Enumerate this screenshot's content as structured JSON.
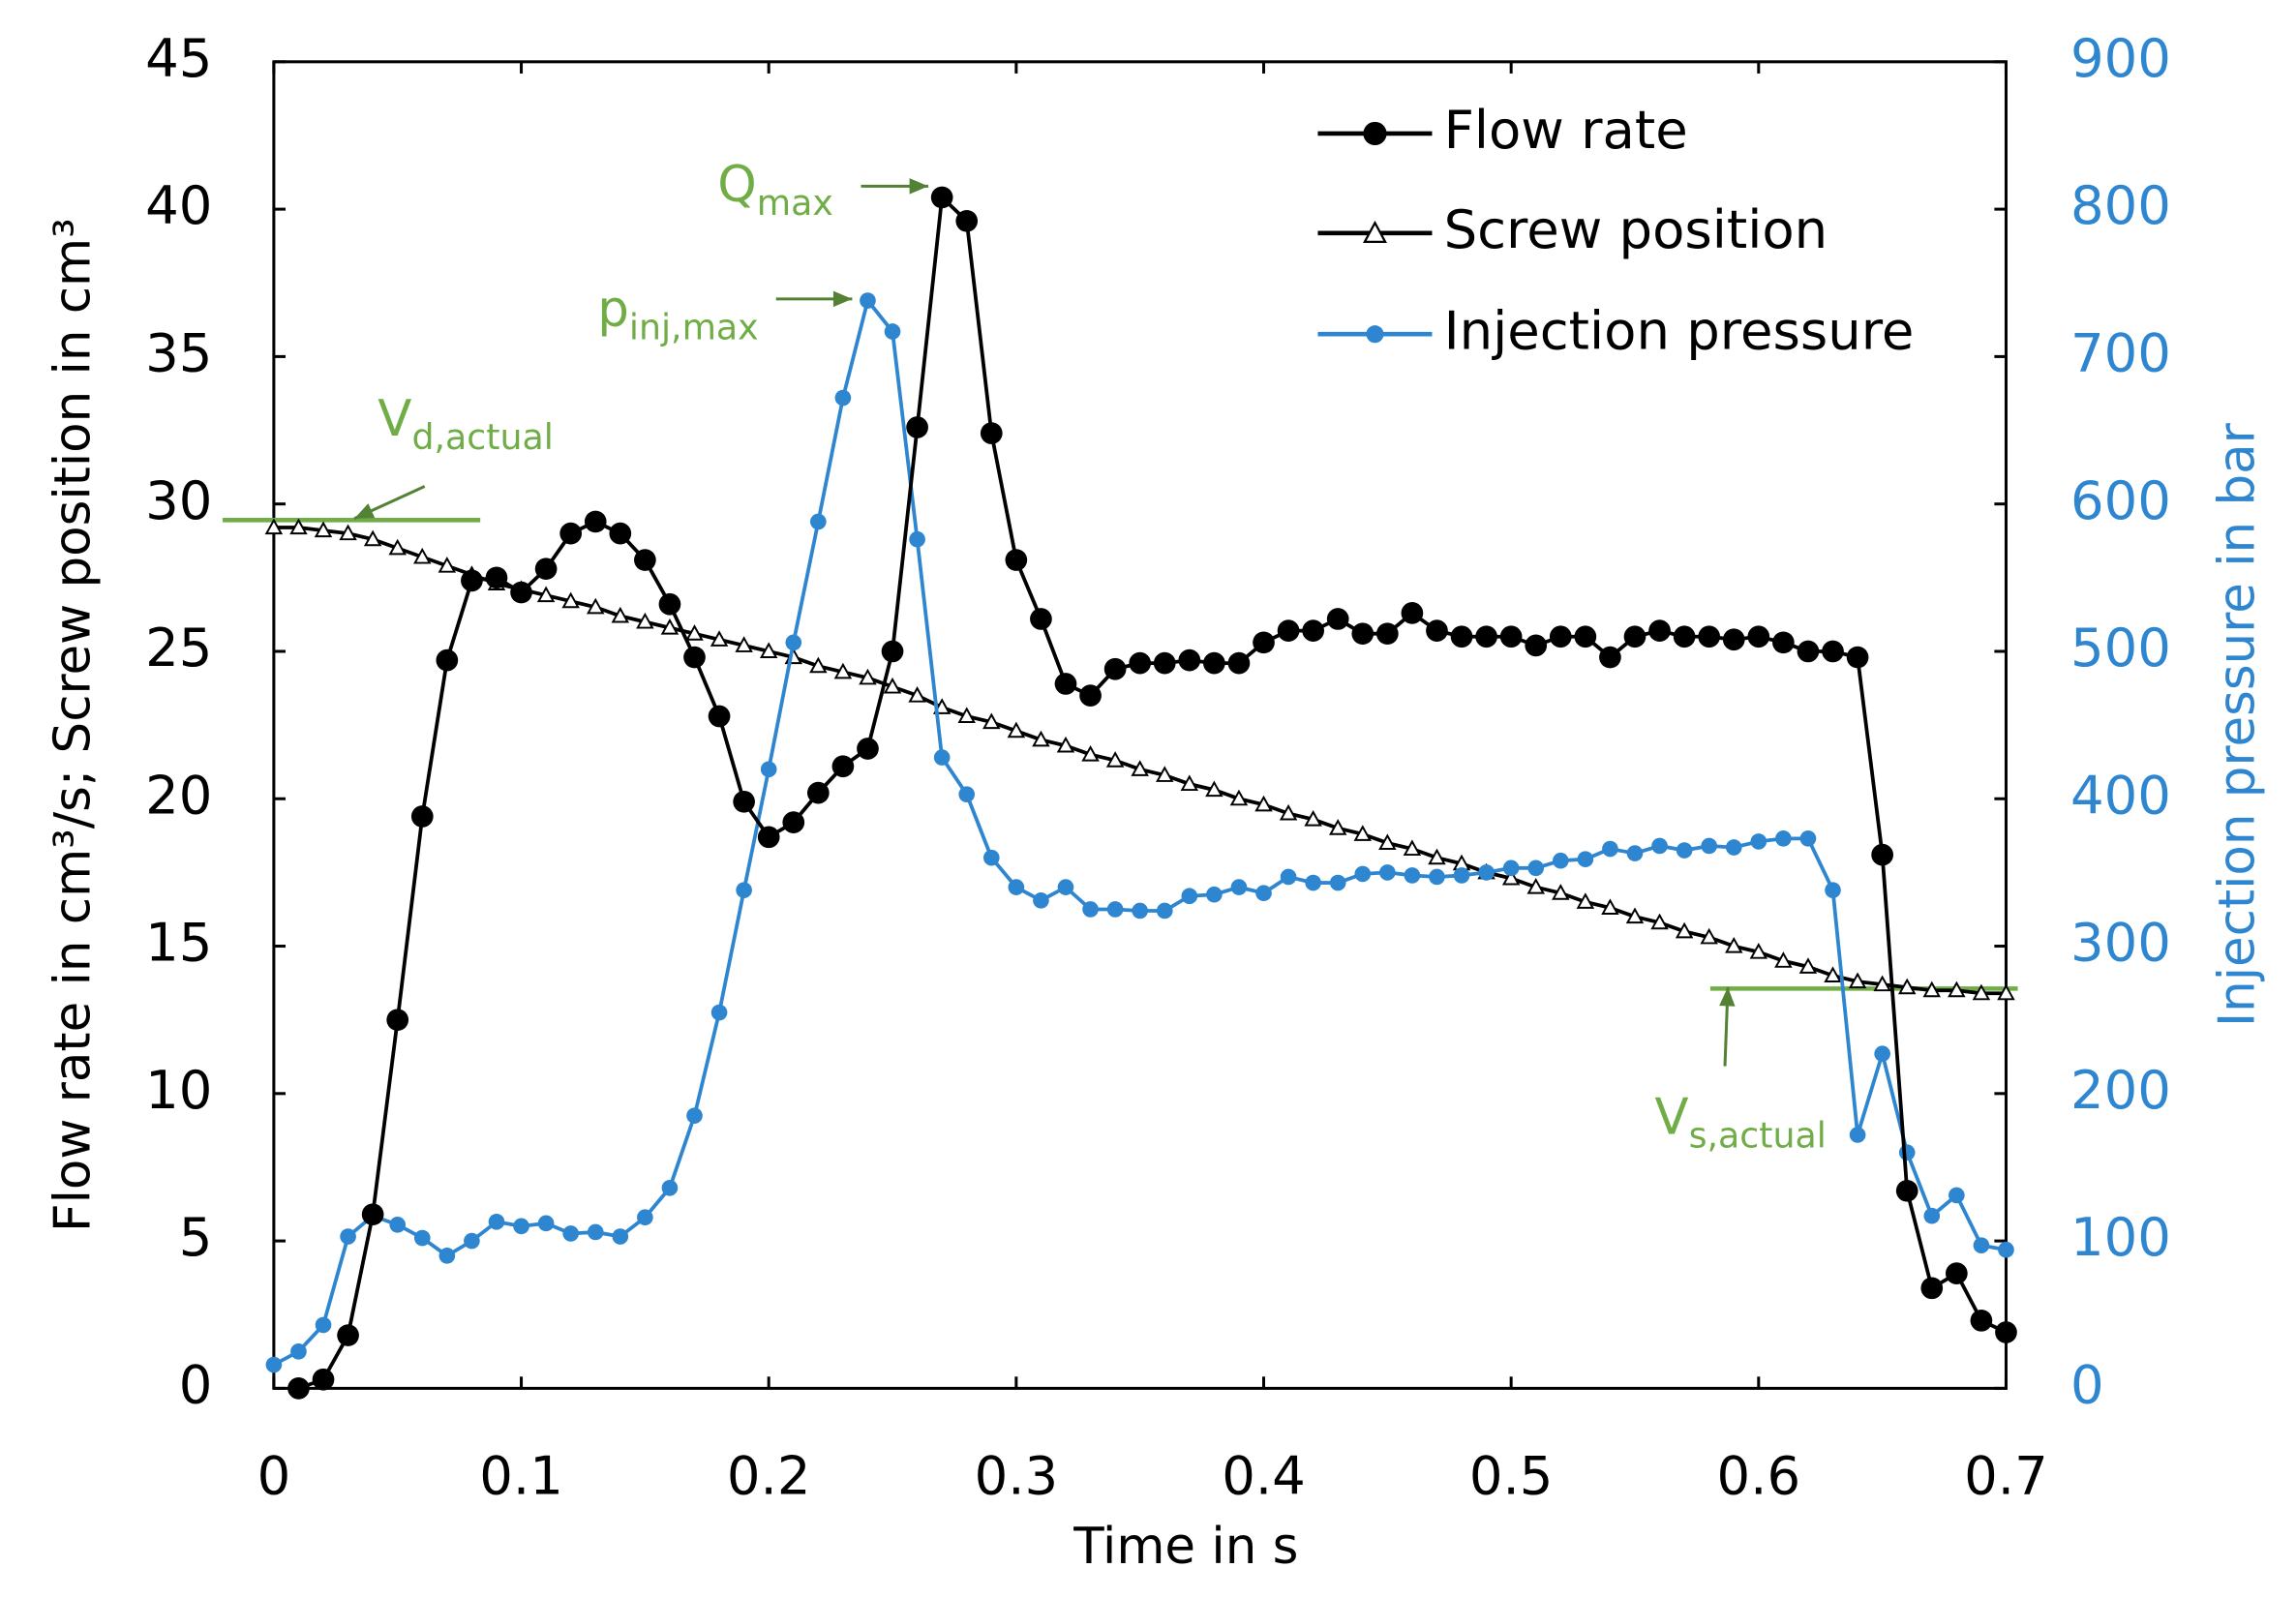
{
  "chart_data": {
    "type": "line",
    "xlabel": "Time in s",
    "ylabel": "Flow rate in cm³/s; Screw position in cm³",
    "y2label": "Injection pressure in bar",
    "xlim": [
      0,
      0.7
    ],
    "xticks": [
      0,
      0.1,
      0.2,
      0.3,
      0.4,
      0.5,
      0.6,
      0.7
    ],
    "ylim": [
      0,
      45
    ],
    "yticks": [
      0,
      5,
      10,
      15,
      20,
      25,
      30,
      35,
      40,
      45
    ],
    "y2lim": [
      0,
      900
    ],
    "y2ticks": [
      0,
      100,
      200,
      300,
      400,
      500,
      600,
      700,
      800,
      900
    ],
    "legend": "upper right",
    "series": [
      {
        "name": "Flow rate",
        "color": "#000000",
        "marker": "circle",
        "axis": "y",
        "x": [
          0.01,
          0.02,
          0.03,
          0.04,
          0.05,
          0.06,
          0.07,
          0.08,
          0.09,
          0.1,
          0.11,
          0.12,
          0.13,
          0.14,
          0.15,
          0.16,
          0.17,
          0.18,
          0.19,
          0.2,
          0.21,
          0.22,
          0.23,
          0.24,
          0.25,
          0.26,
          0.27,
          0.28,
          0.29,
          0.3,
          0.31,
          0.32,
          0.33,
          0.34,
          0.35,
          0.36,
          0.37,
          0.38,
          0.39,
          0.4,
          0.41,
          0.42,
          0.43,
          0.44,
          0.45,
          0.46,
          0.47,
          0.48,
          0.49,
          0.5,
          0.51,
          0.52,
          0.53,
          0.54,
          0.55,
          0.56,
          0.57,
          0.58,
          0.59,
          0.6,
          0.61,
          0.62,
          0.63,
          0.64,
          0.65,
          0.66,
          0.67,
          0.68,
          0.69,
          0.7
        ],
        "values": [
          0,
          0.3,
          1.8,
          5.9,
          12.5,
          19.4,
          24.7,
          27.4,
          27.5,
          27.0,
          27.8,
          29.0,
          29.4,
          29.0,
          28.1,
          26.6,
          24.8,
          22.8,
          19.9,
          18.7,
          19.2,
          20.2,
          21.1,
          21.7,
          25.0,
          32.6,
          40.4,
          39.6,
          32.4,
          28.1,
          26.1,
          23.9,
          23.5,
          24.4,
          24.6,
          24.6,
          24.7,
          24.6,
          24.6,
          25.3,
          25.7,
          25.7,
          26.1,
          25.6,
          25.6,
          26.3,
          25.7,
          25.5,
          25.5,
          25.5,
          25.2,
          25.5,
          25.5,
          24.8,
          25.5,
          25.7,
          25.5,
          25.5,
          25.4,
          25.5,
          25.3,
          25.0,
          25.0,
          24.8,
          18.1,
          6.7,
          3.4,
          3.9,
          2.3,
          1.9
        ]
      },
      {
        "name": "Screw position",
        "color": "#000000",
        "marker": "triangle",
        "axis": "y",
        "x": [
          0,
          0.01,
          0.02,
          0.03,
          0.04,
          0.05,
          0.06,
          0.07,
          0.08,
          0.09,
          0.1,
          0.11,
          0.12,
          0.13,
          0.14,
          0.15,
          0.16,
          0.17,
          0.18,
          0.19,
          0.2,
          0.21,
          0.22,
          0.23,
          0.24,
          0.25,
          0.26,
          0.27,
          0.28,
          0.29,
          0.3,
          0.31,
          0.32,
          0.33,
          0.34,
          0.35,
          0.36,
          0.37,
          0.38,
          0.39,
          0.4,
          0.41,
          0.42,
          0.43,
          0.44,
          0.45,
          0.46,
          0.47,
          0.48,
          0.49,
          0.5,
          0.51,
          0.52,
          0.53,
          0.54,
          0.55,
          0.56,
          0.57,
          0.58,
          0.59,
          0.6,
          0.61,
          0.62,
          0.63,
          0.64,
          0.65,
          0.66,
          0.67,
          0.68,
          0.69,
          0.7
        ],
        "values": [
          29.2,
          29.2,
          29.1,
          29.0,
          28.8,
          28.5,
          28.2,
          27.9,
          27.6,
          27.3,
          27.1,
          26.9,
          26.7,
          26.5,
          26.2,
          26.0,
          25.8,
          25.6,
          25.4,
          25.2,
          25.0,
          24.8,
          24.5,
          24.3,
          24.1,
          23.8,
          23.5,
          23.1,
          22.8,
          22.6,
          22.3,
          22.0,
          21.8,
          21.5,
          21.3,
          21.0,
          20.8,
          20.5,
          20.3,
          20.0,
          19.8,
          19.5,
          19.3,
          19.0,
          18.8,
          18.5,
          18.3,
          18.0,
          17.8,
          17.5,
          17.3,
          17.0,
          16.8,
          16.5,
          16.3,
          16.0,
          15.8,
          15.5,
          15.3,
          15.0,
          14.8,
          14.5,
          14.3,
          14.0,
          13.8,
          13.7,
          13.6,
          13.5,
          13.5,
          13.4,
          13.4
        ]
      },
      {
        "name": "Injection pressure",
        "color": "#2e86d0",
        "marker": "circle",
        "axis": "y2",
        "x": [
          0,
          0.01,
          0.02,
          0.03,
          0.04,
          0.05,
          0.06,
          0.07,
          0.08,
          0.09,
          0.1,
          0.11,
          0.12,
          0.13,
          0.14,
          0.15,
          0.16,
          0.17,
          0.18,
          0.19,
          0.2,
          0.21,
          0.22,
          0.23,
          0.24,
          0.25,
          0.26,
          0.27,
          0.28,
          0.29,
          0.3,
          0.31,
          0.32,
          0.33,
          0.34,
          0.35,
          0.36,
          0.37,
          0.38,
          0.39,
          0.4,
          0.41,
          0.42,
          0.43,
          0.44,
          0.45,
          0.46,
          0.47,
          0.48,
          0.49,
          0.5,
          0.51,
          0.52,
          0.53,
          0.54,
          0.55,
          0.56,
          0.57,
          0.58,
          0.59,
          0.6,
          0.61,
          0.62,
          0.63,
          0.64,
          0.65,
          0.66,
          0.67,
          0.68,
          0.69,
          0.7
        ],
        "values": [
          16,
          25,
          43,
          103,
          117,
          111,
          102,
          90,
          100,
          113,
          110,
          112,
          105,
          106,
          103,
          116,
          136,
          185,
          255,
          338,
          420,
          506,
          588,
          672,
          738,
          717,
          576,
          428,
          403,
          360,
          340,
          331,
          340,
          325,
          325,
          324,
          324,
          334,
          335,
          340,
          336,
          347,
          343,
          343,
          349,
          350,
          348,
          347,
          348,
          350,
          353,
          353,
          358,
          359,
          366,
          363,
          368,
          365,
          368,
          367,
          371,
          373,
          373,
          338,
          172,
          227,
          160,
          117,
          131,
          97,
          94
        ]
      }
    ],
    "annotations": [
      {
        "text": "Q",
        "sub": "max"
      },
      {
        "text": "p",
        "sub": "inj,max"
      },
      {
        "text": "V",
        "sub": "d,actual"
      },
      {
        "text": "V",
        "sub": "s,actual"
      }
    ],
    "annotation_color": "#70ad47"
  }
}
